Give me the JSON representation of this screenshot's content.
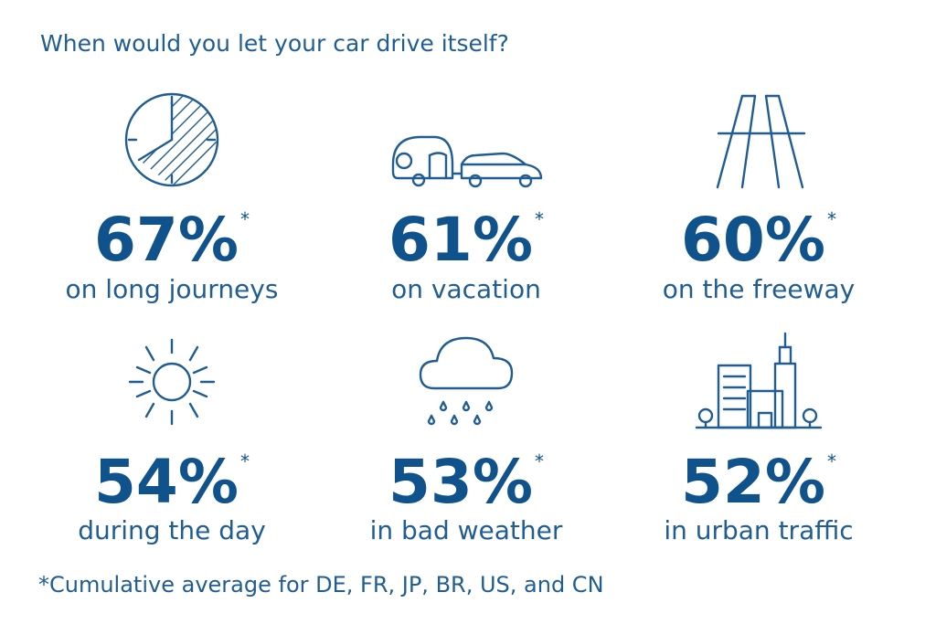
{
  "title": "When would you let your car drive itself?",
  "items": [
    {
      "value": "67%",
      "label": "on long journeys"
    },
    {
      "value": "61%",
      "label": "on vacation"
    },
    {
      "value": "60%",
      "label": "on the freeway"
    },
    {
      "value": "54%",
      "label": "during the day"
    },
    {
      "value": "53%",
      "label": "in bad weather"
    },
    {
      "value": "52%",
      "label": "in urban traffic"
    }
  ],
  "marker": "*",
  "footnote": "*Cumulative average for DE, FR, JP, BR, US, and CN"
}
